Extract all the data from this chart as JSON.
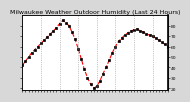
{
  "title": "Milwaukee Weather Outdoor Humidity (Last 24 Hours)",
  "x_values": [
    0,
    1,
    2,
    3,
    4,
    5,
    6,
    7,
    8,
    9,
    10,
    11,
    12,
    13,
    14,
    15,
    16,
    17,
    18,
    19,
    20,
    21,
    22,
    23,
    24,
    25,
    26,
    27,
    28,
    29,
    30,
    31,
    32,
    33,
    34,
    35,
    36,
    37,
    38,
    39,
    40,
    41,
    42,
    43,
    44,
    45,
    46,
    47
  ],
  "y_values": [
    42,
    46,
    50,
    54,
    57,
    60,
    63,
    66,
    69,
    72,
    75,
    78,
    82,
    85,
    83,
    80,
    74,
    67,
    58,
    48,
    38,
    30,
    24,
    20,
    22,
    27,
    34,
    40,
    47,
    54,
    60,
    65,
    68,
    71,
    73,
    75,
    76,
    77,
    75,
    74,
    72,
    71,
    70,
    68,
    66,
    64,
    62,
    60
  ],
  "line_color": "#FF0000",
  "line_style": "--",
  "marker": "s",
  "marker_color": "#000000",
  "marker_size": 1.5,
  "line_width": 0.8,
  "bg_color": "#d8d8d8",
  "plot_bg_color": "#ffffff",
  "grid_color": "#888888",
  "grid_style": ":",
  "ylim": [
    18,
    90
  ],
  "yticks": [
    20,
    30,
    40,
    50,
    60,
    70,
    80
  ],
  "title_fontsize": 4.5,
  "tick_fontsize": 3.2,
  "vgrid_positions": [
    6,
    12,
    18,
    24,
    30,
    36,
    42
  ],
  "n_points": 48
}
